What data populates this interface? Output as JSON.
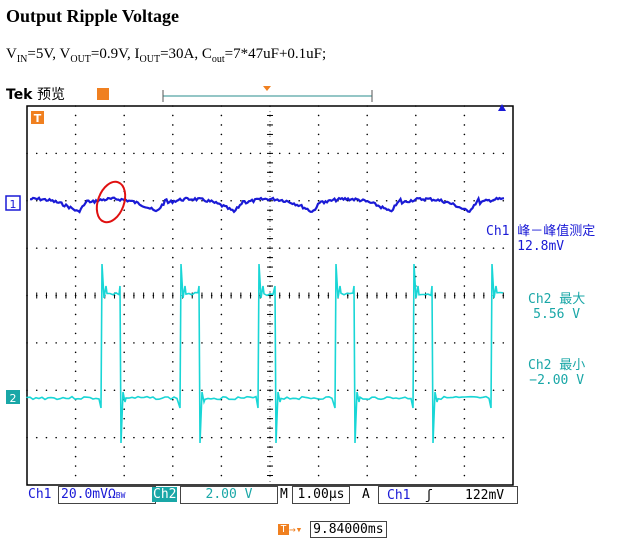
{
  "header": {
    "title": "Output Ripple Voltage",
    "params": {
      "vin_label": "V",
      "vin_sub": "IN",
      "vin_val": "=5V, ",
      "vout_label": "V",
      "vout_sub": "OUT",
      "vout_val": "=0.9V, ",
      "iout_label": "I",
      "iout_sub": "OUT",
      "iout_val": "=30A, ",
      "cout_label": "C",
      "cout_sub": "out",
      "cout_val": "=7*47uF+0.1uF;"
    }
  },
  "scope": {
    "brand": "Tek",
    "mode": "预览",
    "ch1_marker": "1",
    "ch2_marker": "2",
    "trigger_marker": "T",
    "colors": {
      "ch1": "#1a1ad6",
      "ch2": "#19d6d6",
      "ch2_text": "#1aa7a7",
      "marker_orange": "#f08020",
      "grid": "#000000"
    }
  },
  "measurements": {
    "ch1_pk2pk_label": "Ch1 峰－峰值测定",
    "ch1_pk2pk_value": "12.8mV",
    "ch2_max_label": "Ch2 最大",
    "ch2_max_value": "5.56 V",
    "ch2_min_label": "Ch2 最小",
    "ch2_min_value": "−2.00 V"
  },
  "status_bar": {
    "ch1_label": "Ch1",
    "ch1_scale": "20.0mVΩ",
    "ch1_bw": "BW",
    "ch2_label": "Ch2",
    "ch2_scale": "2.00 V",
    "timebase_label": "M",
    "timebase_value": "1.00µs",
    "trigger_source_label": "A",
    "trigger_ch": "Ch1",
    "trigger_slope": "ʃ",
    "trigger_level": "122mV"
  },
  "trigger_position": {
    "value": "9.84000ms"
  }
}
